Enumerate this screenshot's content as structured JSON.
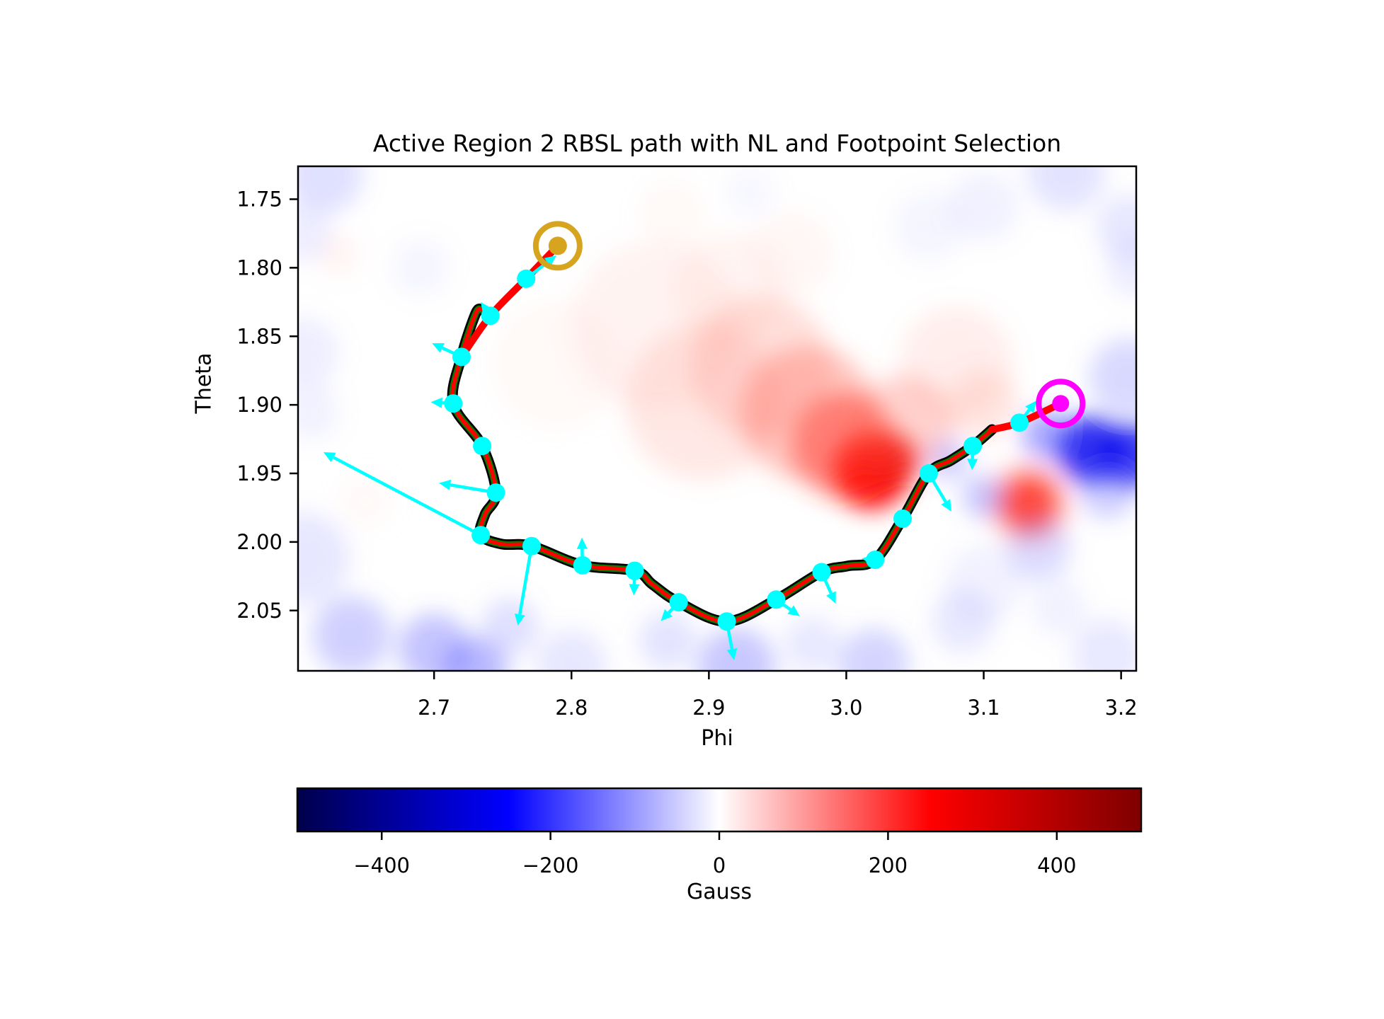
{
  "chart_data": {
    "type": "line+heatmap",
    "title": "Active Region 2 RBSL path with NL and Footpoint Selection",
    "xlabel": "Phi",
    "ylabel": "Theta",
    "xlim": [
      2.601,
      3.211
    ],
    "ylim": [
      1.726,
      2.094
    ],
    "y_inverted": true,
    "x_ticks": {
      "values": [
        2.7,
        2.8,
        2.9,
        3.0,
        3.1,
        3.2
      ],
      "labels": [
        "2.7",
        "2.8",
        "2.9",
        "3.0",
        "3.1",
        "3.2"
      ]
    },
    "y_ticks": {
      "values": [
        1.75,
        1.8,
        1.85,
        1.9,
        1.95,
        2.0,
        2.05
      ],
      "labels": [
        "1.75",
        "1.80",
        "1.85",
        "1.90",
        "1.95",
        "2.00",
        "2.05"
      ]
    },
    "colors": {
      "nl_outline": "#000000",
      "nl_core": "#008000",
      "rbsl_path": "#ff0000",
      "nodes_and_arrows": "#00ffff",
      "footpoint_start": "#d6a41f",
      "footpoint_end": "#ff00ff"
    },
    "footpoints": {
      "start": {
        "phi": 2.79,
        "theta": 1.784,
        "color": "#d6a41f"
      },
      "end": {
        "phi": 3.156,
        "theta": 1.899,
        "color": "#ff00ff"
      }
    },
    "path_points": [
      [
        2.767,
        1.808
      ],
      [
        2.741,
        1.835
      ],
      [
        2.72,
        1.865
      ],
      [
        2.714,
        1.899
      ],
      [
        2.735,
        1.93
      ],
      [
        2.745,
        1.964
      ],
      [
        2.734,
        1.995
      ],
      [
        2.771,
        2.003
      ],
      [
        2.808,
        2.017
      ],
      [
        2.846,
        2.021
      ],
      [
        2.878,
        2.044
      ],
      [
        2.913,
        2.058
      ],
      [
        2.949,
        2.042
      ],
      [
        2.982,
        2.022
      ],
      [
        3.021,
        2.013
      ],
      [
        3.041,
        1.983
      ],
      [
        3.06,
        1.95
      ],
      [
        3.092,
        1.93
      ],
      [
        3.126,
        1.913
      ]
    ],
    "nl_path": [
      [
        2.7345,
        1.8306
      ],
      [
        2.7303,
        1.8333
      ],
      [
        2.72,
        1.8646
      ],
      [
        2.714,
        1.899
      ],
      [
        2.735,
        1.93
      ],
      [
        2.745,
        1.964
      ],
      [
        2.737,
        1.98
      ],
      [
        2.734,
        1.995
      ],
      [
        2.749,
        2.0015
      ],
      [
        2.771,
        2.003
      ],
      [
        2.808,
        2.017
      ],
      [
        2.846,
        2.021
      ],
      [
        2.859,
        2.031
      ],
      [
        2.878,
        2.044
      ],
      [
        2.913,
        2.058
      ],
      [
        2.949,
        2.042
      ],
      [
        2.982,
        2.022
      ],
      [
        3.001,
        2.0175
      ],
      [
        3.021,
        2.013
      ],
      [
        3.041,
        1.983
      ],
      [
        3.06,
        1.95
      ],
      [
        3.076,
        1.9405
      ],
      [
        3.092,
        1.93
      ],
      [
        3.106,
        1.918
      ]
    ],
    "connector_start": [
      [
        2.79,
        1.784
      ],
      [
        2.767,
        1.808
      ],
      [
        2.741,
        1.835
      ],
      [
        2.72,
        1.865
      ]
    ],
    "connector_end": [
      [
        3.156,
        1.899
      ],
      [
        3.126,
        1.913
      ],
      [
        3.106,
        1.918
      ]
    ],
    "arrows": [
      [
        2.767,
        1.808,
        2.789,
        1.791
      ],
      [
        2.741,
        1.835,
        2.734,
        1.825
      ],
      [
        2.72,
        1.865,
        2.6985,
        1.855
      ],
      [
        2.714,
        1.899,
        2.6976,
        1.898
      ],
      [
        2.745,
        1.964,
        2.7036,
        1.957
      ],
      [
        2.734,
        1.995,
        2.6195,
        1.9345
      ],
      [
        2.771,
        2.003,
        2.761,
        2.061
      ],
      [
        2.808,
        2.017,
        2.8076,
        1.9968
      ],
      [
        2.846,
        2.021,
        2.8454,
        2.039
      ],
      [
        2.878,
        2.044,
        2.865,
        2.0577
      ],
      [
        2.913,
        2.058,
        2.9184,
        2.0863
      ],
      [
        2.949,
        2.042,
        2.9662,
        2.0541
      ],
      [
        2.982,
        2.022,
        2.9923,
        2.045
      ],
      [
        3.021,
        2.013,
        3.0112,
        2.0122
      ],
      [
        3.06,
        1.95,
        3.0765,
        1.9778
      ],
      [
        3.092,
        1.93,
        3.0916,
        1.9477
      ],
      [
        3.126,
        1.913,
        3.1383,
        1.897
      ]
    ],
    "heatmap_blobs": [
      [
        3.018,
        1.948,
        55,
        "#ff0000",
        0.92
      ],
      [
        3.033,
        1.941,
        40,
        "#e80000",
        0.65
      ],
      [
        2.999,
        1.93,
        75,
        "#ff3020",
        0.5
      ],
      [
        2.972,
        1.906,
        95,
        "#ff5040",
        0.33
      ],
      [
        3.042,
        1.915,
        70,
        "#ff6050",
        0.28
      ],
      [
        2.938,
        1.872,
        100,
        "#ff7060",
        0.22
      ],
      [
        2.896,
        1.898,
        110,
        "#ff8070",
        0.18
      ],
      [
        2.862,
        1.842,
        120,
        "#ffa090",
        0.13
      ],
      [
        2.915,
        1.815,
        80,
        "#ffb0a0",
        0.12
      ],
      [
        2.79,
        1.87,
        90,
        "#ffc0b0",
        0.1
      ],
      [
        2.96,
        1.79,
        60,
        "#ffb0a0",
        0.1
      ],
      [
        2.873,
        1.76,
        45,
        "#ffc0b0",
        0.1
      ],
      [
        3.08,
        1.87,
        80,
        "#ff9080",
        0.15
      ],
      [
        3.1,
        1.9,
        50,
        "#ff8070",
        0.18
      ],
      [
        2.63,
        1.79,
        30,
        "#ffb0a0",
        0.12
      ],
      [
        2.65,
        1.97,
        40,
        "#ffd0c0",
        0.1
      ],
      [
        3.133,
        1.972,
        40,
        "#ff1000",
        0.8
      ],
      [
        3.133,
        1.972,
        60,
        "#ff6050",
        0.3
      ],
      [
        3.178,
        1.933,
        48,
        "#0000ee",
        0.8
      ],
      [
        3.208,
        1.937,
        45,
        "#0000ee",
        0.75
      ],
      [
        3.146,
        1.922,
        35,
        "#4040ff",
        0.45
      ],
      [
        3.19,
        1.962,
        40,
        "#6060ff",
        0.3
      ],
      [
        3.205,
        1.88,
        55,
        "#8080ff",
        0.3
      ],
      [
        3.16,
        1.73,
        55,
        "#9090ff",
        0.25
      ],
      [
        3.205,
        1.77,
        45,
        "#9090ff",
        0.22
      ],
      [
        3.1,
        1.755,
        50,
        "#a0a0ff",
        0.15
      ],
      [
        3.14,
        2.005,
        45,
        "#8080ff",
        0.28
      ],
      [
        3.1,
        1.967,
        30,
        "#6060ff",
        0.35
      ],
      [
        2.62,
        1.732,
        55,
        "#9090ff",
        0.28
      ],
      [
        2.605,
        1.775,
        40,
        "#a0a0ff",
        0.18
      ],
      [
        2.605,
        1.862,
        50,
        "#a0a0ff",
        0.18
      ],
      [
        2.61,
        1.905,
        40,
        "#a0a0ff",
        0.15
      ],
      [
        2.605,
        2.012,
        65,
        "#9090ff",
        0.22
      ],
      [
        2.64,
        2.068,
        55,
        "#7070ff",
        0.33
      ],
      [
        2.7,
        2.078,
        50,
        "#6060ff",
        0.38
      ],
      [
        2.73,
        2.093,
        45,
        "#5050ff",
        0.4
      ],
      [
        2.755,
        2.062,
        40,
        "#8080ff",
        0.25
      ],
      [
        2.8,
        2.09,
        50,
        "#9090ff",
        0.22
      ],
      [
        2.87,
        2.072,
        40,
        "#8080ff",
        0.22
      ],
      [
        2.92,
        2.091,
        55,
        "#6060ff",
        0.35
      ],
      [
        2.975,
        2.075,
        40,
        "#9090ff",
        0.2
      ],
      [
        3.02,
        2.089,
        50,
        "#7070ff",
        0.3
      ],
      [
        3.085,
        2.058,
        45,
        "#9090ff",
        0.2
      ],
      [
        3.155,
        2.048,
        40,
        "#a0a0ff",
        0.15
      ],
      [
        3.19,
        2.082,
        50,
        "#9090ff",
        0.2
      ],
      [
        3.075,
        1.94,
        28,
        "#6060ff",
        0.3
      ],
      [
        3.1,
        2.03,
        55,
        "#a0a0ff",
        0.15
      ],
      [
        2.69,
        1.8,
        40,
        "#b0b0ff",
        0.12
      ],
      [
        2.93,
        1.745,
        35,
        "#b0b0ff",
        0.1
      ],
      [
        3.06,
        1.77,
        50,
        "#b0b0ff",
        0.12
      ],
      [
        3.21,
        1.8,
        40,
        "#a0a0ff",
        0.2
      ]
    ],
    "colorbar": {
      "label": "Gauss",
      "vmin": -500,
      "vmax": 500,
      "ticks": {
        "values": [
          -400,
          -200,
          0,
          200,
          400
        ],
        "labels": [
          "−400",
          "−200",
          "0",
          "200",
          "400"
        ]
      },
      "stops": [
        [
          0.0,
          "#00004C"
        ],
        [
          0.25,
          "#0000FF"
        ],
        [
          0.5,
          "#FFFFFF"
        ],
        [
          0.75,
          "#FF0000"
        ],
        [
          1.0,
          "#7F0000"
        ]
      ]
    }
  }
}
